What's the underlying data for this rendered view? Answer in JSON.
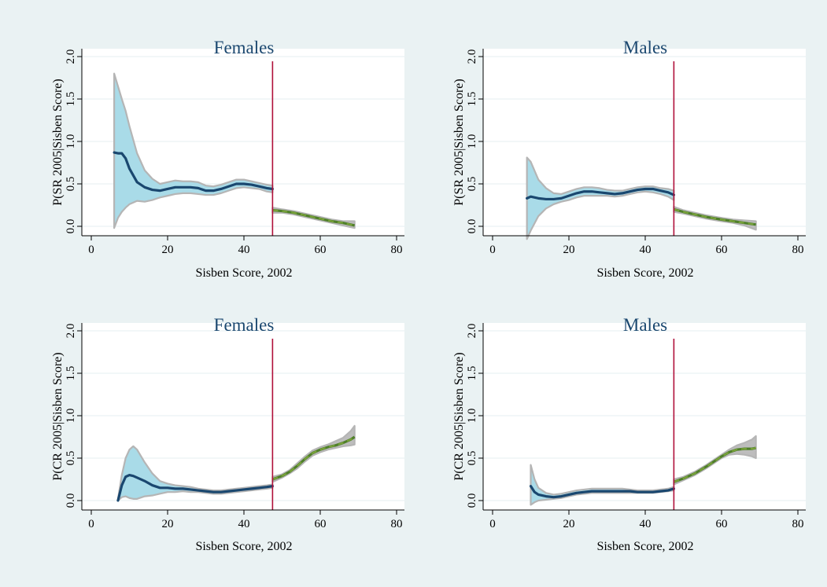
{
  "colors": {
    "outer_background": "#eaf2f3",
    "plot_background": "#ffffff",
    "grid": "#eaf2f3",
    "title": "#1a476f",
    "axis": "#000000",
    "cutoff_line": "#b0103a",
    "left_fit": "#1a476f",
    "left_ci_fill": "#a9dbe8",
    "right_fit": "#4f7f2a",
    "right_fit_dash": "#7aa33a",
    "ci_border": "#b5b5b5",
    "right_ci_fill": "#bdbdbd"
  },
  "chart_data": [
    {
      "type": "line",
      "title": "Females",
      "xlabel": "Sisben Score, 2002",
      "ylabel": "P(SR 2005|Sisben Score)",
      "xlim": [
        0,
        80
      ],
      "ylim": [
        0,
        2
      ],
      "xticks": [
        0,
        20,
        40,
        60,
        80
      ],
      "yticks": [
        0.0,
        0.5,
        1.0,
        1.5,
        2.0
      ],
      "ytick_labels": [
        "0.0",
        "0.5",
        "1.0",
        "1.5",
        "2.0"
      ],
      "grid": true,
      "cutoff": 47.5,
      "series": [
        {
          "x": [
            6,
            7,
            8,
            9,
            10,
            12,
            14,
            16,
            18,
            20,
            22,
            24,
            26,
            28,
            30,
            32,
            34,
            36,
            38,
            40,
            42,
            44,
            46,
            47.5
          ],
          "y": [
            0.87,
            0.86,
            0.86,
            0.8,
            0.68,
            0.52,
            0.46,
            0.43,
            0.42,
            0.44,
            0.46,
            0.46,
            0.46,
            0.45,
            0.42,
            0.42,
            0.44,
            0.47,
            0.5,
            0.5,
            0.49,
            0.47,
            0.45,
            0.44
          ],
          "lower": [
            -0.02,
            0.1,
            0.17,
            0.22,
            0.26,
            0.3,
            0.29,
            0.31,
            0.34,
            0.36,
            0.38,
            0.39,
            0.39,
            0.38,
            0.37,
            0.37,
            0.39,
            0.42,
            0.45,
            0.46,
            0.45,
            0.44,
            0.41,
            0.4
          ],
          "upper": [
            1.8,
            1.65,
            1.5,
            1.36,
            1.18,
            0.86,
            0.66,
            0.56,
            0.5,
            0.52,
            0.54,
            0.53,
            0.53,
            0.52,
            0.48,
            0.47,
            0.49,
            0.52,
            0.55,
            0.55,
            0.53,
            0.51,
            0.49,
            0.48
          ]
        },
        {
          "x": [
            47.5,
            50,
            53,
            56,
            60,
            63,
            66,
            69
          ],
          "y": [
            0.19,
            0.18,
            0.16,
            0.13,
            0.09,
            0.06,
            0.04,
            0.01
          ],
          "lower": [
            0.16,
            0.16,
            0.14,
            0.11,
            0.07,
            0.04,
            0.01,
            -0.02
          ],
          "upper": [
            0.22,
            0.2,
            0.18,
            0.15,
            0.11,
            0.08,
            0.06,
            0.06
          ]
        }
      ]
    },
    {
      "type": "line",
      "title": "Males",
      "xlabel": "Sisben Score, 2002",
      "ylabel": "P(SR 2005|Sisben Score)",
      "xlim": [
        0,
        80
      ],
      "ylim": [
        0,
        2
      ],
      "xticks": [
        0,
        20,
        40,
        60,
        80
      ],
      "yticks": [
        0.0,
        0.5,
        1.0,
        1.5,
        2.0
      ],
      "ytick_labels": [
        "0.0",
        "0.5",
        "1.0",
        "1.5",
        "2.0"
      ],
      "grid": true,
      "cutoff": 47.5,
      "series": [
        {
          "x": [
            9,
            10,
            12,
            14,
            16,
            18,
            20,
            22,
            24,
            26,
            28,
            30,
            32,
            34,
            36,
            38,
            40,
            42,
            44,
            46,
            47.5
          ],
          "y": [
            0.33,
            0.35,
            0.33,
            0.32,
            0.32,
            0.33,
            0.36,
            0.39,
            0.41,
            0.41,
            0.4,
            0.39,
            0.38,
            0.39,
            0.41,
            0.43,
            0.44,
            0.44,
            0.42,
            0.4,
            0.37
          ],
          "lower": [
            -0.15,
            -0.05,
            0.12,
            0.21,
            0.26,
            0.29,
            0.31,
            0.34,
            0.36,
            0.36,
            0.36,
            0.36,
            0.35,
            0.36,
            0.38,
            0.4,
            0.41,
            0.4,
            0.38,
            0.35,
            0.31
          ],
          "upper": [
            0.81,
            0.76,
            0.55,
            0.45,
            0.39,
            0.38,
            0.41,
            0.44,
            0.46,
            0.46,
            0.45,
            0.43,
            0.42,
            0.42,
            0.44,
            0.46,
            0.47,
            0.47,
            0.45,
            0.44,
            0.42
          ]
        },
        {
          "x": [
            47.5,
            50,
            53,
            56,
            60,
            63,
            66,
            69
          ],
          "y": [
            0.2,
            0.17,
            0.14,
            0.11,
            0.08,
            0.06,
            0.04,
            0.02
          ],
          "lower": [
            0.17,
            0.15,
            0.12,
            0.09,
            0.06,
            0.04,
            0.01,
            -0.04
          ],
          "upper": [
            0.23,
            0.19,
            0.16,
            0.13,
            0.1,
            0.08,
            0.07,
            0.06
          ]
        }
      ]
    },
    {
      "type": "line",
      "title": "Females",
      "xlabel": "Sisben Score, 2002",
      "ylabel": "P(CR 2005|Sisben Score)",
      "xlim": [
        0,
        80
      ],
      "ylim": [
        0,
        2
      ],
      "xticks": [
        0,
        20,
        40,
        60,
        80
      ],
      "yticks": [
        0.0,
        0.5,
        1.0,
        1.5,
        2.0
      ],
      "ytick_labels": [
        "0.0",
        "0.5",
        "1.0",
        "1.5",
        "2.0"
      ],
      "grid": true,
      "cutoff": 47.5,
      "series": [
        {
          "x": [
            7,
            8,
            9,
            10,
            11,
            12,
            14,
            16,
            18,
            20,
            22,
            24,
            26,
            28,
            30,
            32,
            34,
            36,
            38,
            40,
            42,
            44,
            46,
            47.5
          ],
          "y": [
            0.0,
            0.18,
            0.28,
            0.3,
            0.29,
            0.27,
            0.23,
            0.18,
            0.15,
            0.15,
            0.14,
            0.14,
            0.13,
            0.12,
            0.11,
            0.1,
            0.1,
            0.11,
            0.12,
            0.13,
            0.14,
            0.15,
            0.16,
            0.17
          ],
          "lower": [
            0.0,
            0.04,
            0.05,
            0.03,
            0.02,
            0.02,
            0.05,
            0.06,
            0.08,
            0.1,
            0.1,
            0.11,
            0.1,
            0.1,
            0.09,
            0.08,
            0.08,
            0.09,
            0.1,
            0.11,
            0.12,
            0.13,
            0.14,
            0.15
          ],
          "upper": [
            0.02,
            0.3,
            0.5,
            0.6,
            0.64,
            0.6,
            0.45,
            0.32,
            0.23,
            0.2,
            0.18,
            0.17,
            0.16,
            0.14,
            0.13,
            0.12,
            0.12,
            0.13,
            0.14,
            0.15,
            0.16,
            0.17,
            0.18,
            0.19
          ]
        },
        {
          "x": [
            47.5,
            50,
            52,
            54,
            56,
            58,
            60,
            62,
            64,
            66,
            68,
            69
          ],
          "y": [
            0.25,
            0.29,
            0.34,
            0.41,
            0.49,
            0.56,
            0.6,
            0.63,
            0.65,
            0.68,
            0.72,
            0.75
          ],
          "lower": [
            0.22,
            0.27,
            0.32,
            0.38,
            0.46,
            0.53,
            0.57,
            0.6,
            0.62,
            0.64,
            0.65,
            0.66
          ],
          "upper": [
            0.28,
            0.31,
            0.36,
            0.44,
            0.52,
            0.59,
            0.63,
            0.66,
            0.7,
            0.74,
            0.82,
            0.88
          ]
        }
      ]
    },
    {
      "type": "line",
      "title": "Males",
      "xlabel": "Sisben Score, 2002",
      "ylabel": "P(CR 2005|Sisben Score)",
      "xlim": [
        0,
        80
      ],
      "ylim": [
        0,
        2
      ],
      "xticks": [
        0,
        20,
        40,
        60,
        80
      ],
      "yticks": [
        0.0,
        0.5,
        1.0,
        1.5,
        2.0
      ],
      "ytick_labels": [
        "0.0",
        "0.5",
        "1.0",
        "1.5",
        "2.0"
      ],
      "grid": true,
      "cutoff": 47.5,
      "series": [
        {
          "x": [
            10,
            11,
            12,
            14,
            16,
            18,
            20,
            22,
            24,
            26,
            28,
            30,
            32,
            34,
            36,
            38,
            40,
            42,
            44,
            46,
            47.5
          ],
          "y": [
            0.17,
            0.1,
            0.07,
            0.05,
            0.04,
            0.05,
            0.07,
            0.09,
            0.1,
            0.11,
            0.11,
            0.11,
            0.11,
            0.11,
            0.11,
            0.1,
            0.1,
            0.1,
            0.11,
            0.12,
            0.14
          ],
          "lower": [
            -0.05,
            -0.02,
            0.0,
            0.01,
            0.02,
            0.03,
            0.05,
            0.07,
            0.08,
            0.09,
            0.09,
            0.09,
            0.09,
            0.09,
            0.09,
            0.09,
            0.09,
            0.09,
            0.1,
            0.11,
            0.12
          ],
          "upper": [
            0.42,
            0.25,
            0.15,
            0.09,
            0.07,
            0.08,
            0.1,
            0.12,
            0.13,
            0.14,
            0.14,
            0.14,
            0.14,
            0.14,
            0.13,
            0.12,
            0.12,
            0.12,
            0.13,
            0.14,
            0.16
          ]
        },
        {
          "x": [
            47.5,
            50,
            53,
            56,
            58,
            60,
            62,
            64,
            66,
            68,
            69
          ],
          "y": [
            0.22,
            0.26,
            0.32,
            0.4,
            0.46,
            0.52,
            0.57,
            0.6,
            0.61,
            0.61,
            0.62
          ],
          "lower": [
            0.19,
            0.24,
            0.3,
            0.38,
            0.44,
            0.5,
            0.54,
            0.55,
            0.54,
            0.52,
            0.5
          ],
          "upper": [
            0.25,
            0.28,
            0.34,
            0.42,
            0.48,
            0.54,
            0.6,
            0.65,
            0.68,
            0.72,
            0.76
          ]
        }
      ]
    }
  ]
}
